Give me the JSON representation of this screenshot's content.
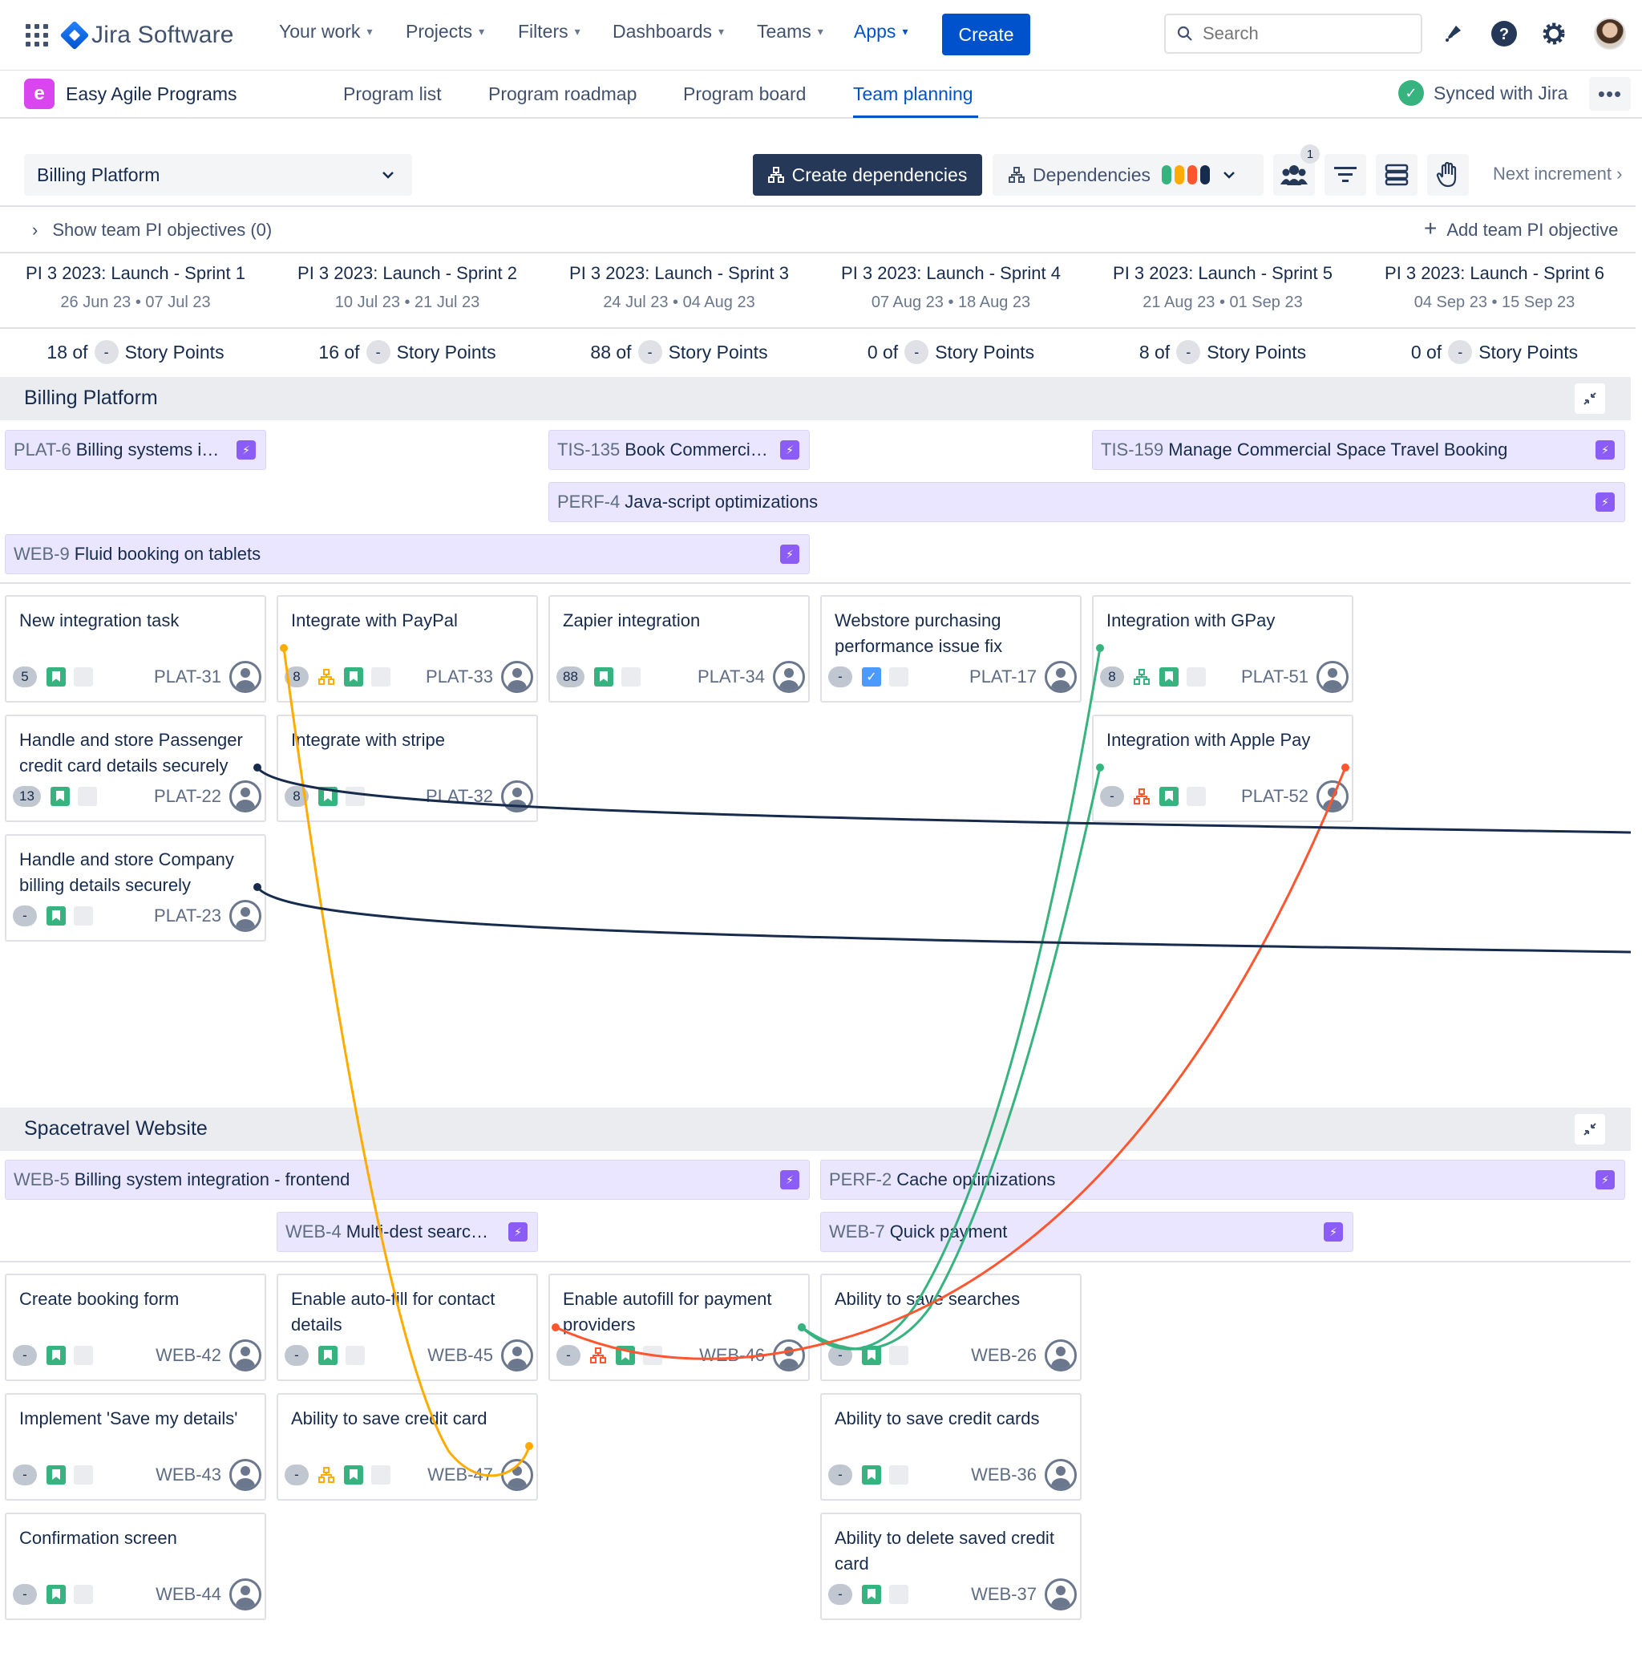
{
  "nav": {
    "product": "Jira Software",
    "items": [
      {
        "label": "Your work"
      },
      {
        "label": "Projects"
      },
      {
        "label": "Filters"
      },
      {
        "label": "Dashboards"
      },
      {
        "label": "Teams"
      },
      {
        "label": "Apps"
      }
    ],
    "create_label": "Create",
    "search_placeholder": "Search"
  },
  "subnav": {
    "app_letter": "e",
    "app_name": "Easy Agile Programs",
    "tabs": [
      "Program list",
      "Program roadmap",
      "Program board",
      "Team planning"
    ],
    "active_tab": "Team planning",
    "synced": "Synced with Jira"
  },
  "toolbar": {
    "team": "Billing Platform",
    "create_deps": "Create dependencies",
    "deps": "Dependencies",
    "dep_colors": [
      "#36b37e",
      "#ffab00",
      "#ff5630",
      "#172b4d"
    ],
    "people_badge": "1",
    "next_increment": "Next increment"
  },
  "objectives": {
    "show": "Show team PI objectives (0)",
    "add": "Add team PI objective"
  },
  "sprints": [
    {
      "name": "PI 3 2023: Launch - Sprint 1",
      "dates": "26 Jun 23 • 07 Jul 23",
      "points": "18 of",
      "unit": "Story Points"
    },
    {
      "name": "PI 3 2023: Launch - Sprint 2",
      "dates": "10 Jul 23 • 21 Jul 23",
      "points": "16 of",
      "unit": "Story Points"
    },
    {
      "name": "PI 3 2023: Launch - Sprint 3",
      "dates": "24 Jul 23 • 04 Aug 23",
      "points": "88 of",
      "unit": "Story Points"
    },
    {
      "name": "PI 3 2023: Launch - Sprint 4",
      "dates": "07 Aug 23 • 18 Aug 23",
      "points": "0 of",
      "unit": "Story Points"
    },
    {
      "name": "PI 3 2023: Launch - Sprint 5",
      "dates": "21 Aug 23 • 01 Sep 23",
      "points": "8 of",
      "unit": "Story Points"
    },
    {
      "name": "PI 3 2023: Launch - Sprint 6",
      "dates": "04 Sep 23 • 15 Sep 23",
      "points": "0 of",
      "unit": "Story Points"
    }
  ],
  "capacity_placeholder": "-",
  "teams": [
    {
      "name": "Billing Platform",
      "features": [
        {
          "key": "PLAT-6",
          "title": "Billing systems i…"
        },
        {
          "key": "TIS-135",
          "title": "Book Commerci…"
        },
        {
          "key": "TIS-159",
          "title": "Manage Commercial Space Travel Booking"
        },
        {
          "key": "PERF-4",
          "title": "Java-script optimizations"
        },
        {
          "key": "WEB-9",
          "title": "Fluid booking on tablets"
        }
      ],
      "cards": [
        {
          "title": "New integration task",
          "est": "5",
          "key": "PLAT-31",
          "dep": ""
        },
        {
          "title": "Integrate with PayPal",
          "est": "8",
          "key": "PLAT-33",
          "dep": "orange"
        },
        {
          "title": "Zapier integration",
          "est": "88",
          "key": "PLAT-34",
          "dep": ""
        },
        {
          "title": "Webstore purchasing performance issue fix",
          "est": "-",
          "key": "PLAT-17",
          "dep": "",
          "type": "task"
        },
        {
          "title": "Integration with GPay",
          "est": "8",
          "key": "PLAT-51",
          "dep": "green"
        },
        {
          "title": "Handle and store Passenger credit card details securely",
          "est": "13",
          "key": "PLAT-22",
          "dep": ""
        },
        {
          "title": "Integrate with stripe",
          "est": "8",
          "key": "PLAT-32",
          "dep": ""
        },
        {
          "title": "Integration with Apple Pay",
          "est": "-",
          "key": "PLAT-52",
          "dep": "red"
        },
        {
          "title": "Handle and store Company billing details securely",
          "est": "-",
          "key": "PLAT-23",
          "dep": ""
        }
      ]
    },
    {
      "name": "Spacetravel Website",
      "features": [
        {
          "key": "WEB-5",
          "title": "Billing system integration - frontend"
        },
        {
          "key": "PERF-2",
          "title": "Cache optimizations"
        },
        {
          "key": "WEB-4",
          "title": "Multi-dest searc…"
        },
        {
          "key": "WEB-7",
          "title": "Quick payment"
        }
      ],
      "cards": [
        {
          "title": "Create booking form",
          "est": "-",
          "key": "WEB-42",
          "dep": ""
        },
        {
          "title": "Enable auto-fill for contact details",
          "est": "-",
          "key": "WEB-45",
          "dep": ""
        },
        {
          "title": "Enable autofill for payment providers",
          "est": "-",
          "key": "WEB-46",
          "dep": "red"
        },
        {
          "title": "Ability to save searches",
          "est": "-",
          "key": "WEB-26",
          "dep": ""
        },
        {
          "title": "Implement 'Save my details'",
          "est": "-",
          "key": "WEB-43",
          "dep": ""
        },
        {
          "title": "Ability to save credit card",
          "est": "-",
          "key": "WEB-47",
          "dep": "orange"
        },
        {
          "title": "Ability to save credit cards",
          "est": "-",
          "key": "WEB-36",
          "dep": ""
        },
        {
          "title": "Confirmation screen",
          "est": "-",
          "key": "WEB-44",
          "dep": ""
        },
        {
          "title": "Ability to delete saved credit card",
          "est": "-",
          "key": "WEB-37",
          "dep": ""
        }
      ]
    }
  ],
  "dependency_colors": {
    "orange": "#ffab00",
    "green": "#36b37e",
    "red": "#ff5630",
    "dark": "#172b4d"
  }
}
